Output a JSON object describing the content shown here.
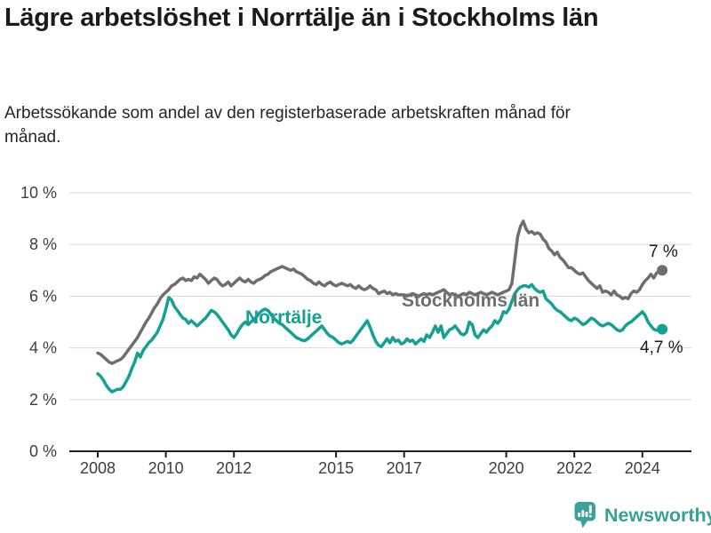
{
  "chart_data": {
    "type": "line",
    "title": "Lägre arbetslöshet i Norrtälje än i Stockholms län",
    "subtitle": "Arbetssökande som andel av den registerbaserade arbetskraften månad för månad.",
    "x_unit": "month",
    "x_start": "2008-01",
    "x_end": "2024-08",
    "x_ticks": [
      2008,
      2010,
      2012,
      2015,
      2017,
      2020,
      2022,
      2024
    ],
    "y_ticks_percent": [
      0,
      2,
      4,
      6,
      8,
      10
    ],
    "y_tick_suffix": " %",
    "ylim": [
      0,
      10.5
    ],
    "grid": true,
    "legend_position": "inline-labels",
    "series": [
      {
        "name": "Stockholms län",
        "color": "#6e6e6e",
        "end_label": "7 %",
        "end_value": 7.0,
        "values": [
          3.8,
          3.75,
          3.65,
          3.55,
          3.45,
          3.4,
          3.45,
          3.5,
          3.55,
          3.65,
          3.8,
          3.95,
          4.1,
          4.25,
          4.4,
          4.6,
          4.8,
          5.0,
          5.15,
          5.35,
          5.55,
          5.7,
          5.9,
          6.05,
          6.15,
          6.25,
          6.4,
          6.45,
          6.55,
          6.65,
          6.7,
          6.6,
          6.65,
          6.6,
          6.75,
          6.7,
          6.85,
          6.75,
          6.65,
          6.5,
          6.6,
          6.7,
          6.65,
          6.5,
          6.4,
          6.45,
          6.55,
          6.4,
          6.5,
          6.6,
          6.7,
          6.6,
          6.55,
          6.65,
          6.55,
          6.5,
          6.6,
          6.65,
          6.7,
          6.8,
          6.85,
          6.95,
          7.0,
          7.05,
          7.1,
          7.15,
          7.1,
          7.05,
          7.0,
          7.05,
          6.95,
          6.9,
          6.85,
          6.75,
          6.65,
          6.6,
          6.5,
          6.45,
          6.55,
          6.45,
          6.4,
          6.5,
          6.55,
          6.45,
          6.4,
          6.45,
          6.5,
          6.45,
          6.4,
          6.45,
          6.35,
          6.3,
          6.4,
          6.3,
          6.25,
          6.3,
          6.4,
          6.3,
          6.25,
          6.1,
          6.15,
          6.2,
          6.1,
          6.15,
          6.05,
          6.1,
          6.05,
          6.05,
          6.05,
          6.0,
          6.05,
          6.1,
          6.05,
          6.0,
          6.05,
          6.1,
          6.05,
          6.1,
          6.05,
          6.1,
          6.15,
          6.2,
          6.25,
          6.15,
          6.05,
          6.1,
          6.05,
          6.0,
          6.05,
          6.1,
          6.05,
          6.15,
          6.1,
          6.05,
          6.1,
          6.15,
          6.1,
          6.05,
          6.1,
          6.15,
          6.1,
          6.05,
          6.1,
          6.15,
          6.2,
          6.25,
          6.5,
          7.4,
          8.3,
          8.7,
          8.9,
          8.6,
          8.45,
          8.5,
          8.4,
          8.45,
          8.4,
          8.2,
          8.1,
          7.85,
          7.75,
          7.6,
          7.7,
          7.5,
          7.4,
          7.25,
          7.1,
          7.1,
          7.0,
          6.9,
          6.85,
          6.9,
          6.75,
          6.6,
          6.5,
          6.4,
          6.3,
          6.4,
          6.15,
          6.2,
          6.15,
          6.05,
          6.2,
          6.05,
          6.0,
          5.9,
          5.95,
          5.9,
          6.1,
          6.2,
          6.15,
          6.25,
          6.45,
          6.6,
          6.7,
          6.85,
          6.7,
          6.9,
          6.95,
          7.0
        ]
      },
      {
        "name": "Norrtälje",
        "color": "#12a192",
        "end_label": "4,7 %",
        "end_value": 4.7,
        "values": [
          3.0,
          2.9,
          2.75,
          2.55,
          2.4,
          2.3,
          2.35,
          2.4,
          2.4,
          2.5,
          2.7,
          2.9,
          3.2,
          3.45,
          3.8,
          3.65,
          3.9,
          4.05,
          4.2,
          4.3,
          4.45,
          4.6,
          4.85,
          5.1,
          5.5,
          5.95,
          5.85,
          5.6,
          5.45,
          5.3,
          5.15,
          5.1,
          4.95,
          5.05,
          4.95,
          4.85,
          4.95,
          5.05,
          5.15,
          5.3,
          5.45,
          5.4,
          5.3,
          5.15,
          5.0,
          4.85,
          4.7,
          4.5,
          4.4,
          4.55,
          4.75,
          4.9,
          5.0,
          4.9,
          5.0,
          5.1,
          5.2,
          5.35,
          5.45,
          5.5,
          5.45,
          5.3,
          5.15,
          5.05,
          4.95,
          4.9,
          4.8,
          4.7,
          4.6,
          4.5,
          4.4,
          4.35,
          4.3,
          4.28,
          4.35,
          4.45,
          4.55,
          4.65,
          4.75,
          4.85,
          4.7,
          4.55,
          4.45,
          4.4,
          4.3,
          4.2,
          4.15,
          4.2,
          4.25,
          4.2,
          4.3,
          4.45,
          4.6,
          4.75,
          4.9,
          5.05,
          4.8,
          4.5,
          4.25,
          4.1,
          4.05,
          4.2,
          4.35,
          4.2,
          4.4,
          4.25,
          4.3,
          4.15,
          4.2,
          4.35,
          4.25,
          4.3,
          4.15,
          4.25,
          4.35,
          4.25,
          4.5,
          4.4,
          4.6,
          4.85,
          4.6,
          4.85,
          4.4,
          4.55,
          4.7,
          4.75,
          4.85,
          4.7,
          4.55,
          4.5,
          4.6,
          5.0,
          4.9,
          4.5,
          4.4,
          4.55,
          4.7,
          4.6,
          4.75,
          4.85,
          5.05,
          4.95,
          5.1,
          5.4,
          5.35,
          5.5,
          5.8,
          6.1,
          6.25,
          6.35,
          6.4,
          6.4,
          6.35,
          6.45,
          6.3,
          6.2,
          6.15,
          6.2,
          5.9,
          5.8,
          5.7,
          5.55,
          5.45,
          5.4,
          5.3,
          5.2,
          5.1,
          5.05,
          5.15,
          5.1,
          5.0,
          4.9,
          4.95,
          5.05,
          5.15,
          5.1,
          5.0,
          4.9,
          4.85,
          4.9,
          4.95,
          4.9,
          4.8,
          4.7,
          4.65,
          4.7,
          4.85,
          4.95,
          5.0,
          5.1,
          5.2,
          5.3,
          5.4,
          5.25,
          5.0,
          4.85,
          4.72,
          4.68,
          4.7,
          4.72
        ]
      }
    ]
  },
  "branding": {
    "name": "Newsworthy",
    "color": "#38a096"
  },
  "colors": {
    "norrtalje_line": "#12a192",
    "stockholms_lan_line": "#6e6e6e",
    "gridline": "#d8d8d8",
    "axis": "#1f1f1f",
    "title_text": "#1b1b1b"
  }
}
